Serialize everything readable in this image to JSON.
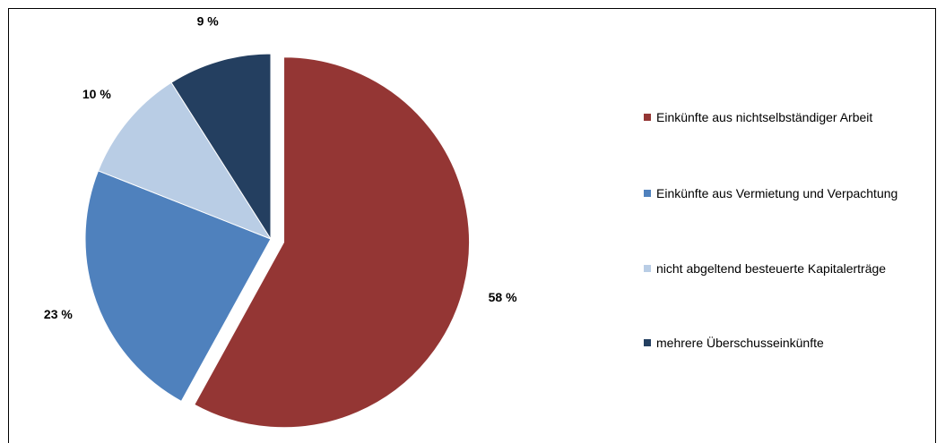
{
  "chart_data": {
    "type": "pie",
    "title": "",
    "start": "12 o'clock, clockwise, first slice exploded",
    "legend_position": "right",
    "series": [
      {
        "name": "Einkünfte aus nichtselbständiger Arbeit",
        "value": 58,
        "label": "58 %",
        "color": "#943634"
      },
      {
        "name": "Einkünfte aus Vermietung und Verpachtung",
        "value": 23,
        "label": "23 %",
        "color": "#4F81BD"
      },
      {
        "name": "nicht abgeltend besteuerte Kapitalerträge",
        "value": 10,
        "label": "10 %",
        "color": "#B9CDE5"
      },
      {
        "name": "mehrere Überschusseinkünfte",
        "value": 9,
        "label": "9 %",
        "color": "#243F60"
      }
    ]
  }
}
